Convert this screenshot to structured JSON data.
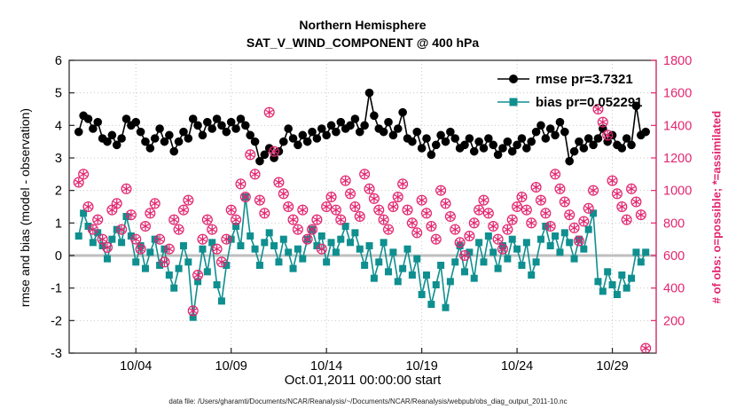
{
  "footer": {
    "data_file": "data file: /Users/gharamti/Documents/NCAR/Reanalysis/~/Documents/NCAR/Reanalysis/webpub/obs_diag_output_2011-10.nc"
  },
  "chart_data": {
    "type": "line",
    "title": "Northern Hemisphere",
    "subtitle": "SAT_V_WIND_COMPONENT @ 400 hPa",
    "xlabel": "Oct.01,2011 00:00:00 start",
    "ylabel_left": "rmse and bias (model - observation)",
    "ylabel_right": "# of obs: o=possible; *=assimilated",
    "ylim_left": [
      -3,
      6
    ],
    "ylim_right": [
      0,
      1800
    ],
    "xlim_days": [
      0.5,
      31.3
    ],
    "grid": true,
    "legend_position": "top-right-inside",
    "x_ticks": {
      "days": [
        4,
        9,
        14,
        19,
        24,
        29
      ],
      "labels": [
        "10/04",
        "10/09",
        "10/14",
        "10/19",
        "10/24",
        "10/29"
      ]
    },
    "y_ticks_left": [
      -3,
      -2,
      -1,
      0,
      1,
      2,
      3,
      4,
      5,
      6
    ],
    "y_ticks_right": [
      200,
      400,
      600,
      800,
      1000,
      1200,
      1400,
      1600,
      1800
    ],
    "legend": [
      {
        "label": "rmse pr=3.7321",
        "color": "#000000",
        "marker": "circle"
      },
      {
        "label": "bias pr=0.052291",
        "color": "#0f8f8f",
        "marker": "square"
      }
    ],
    "colors": {
      "rmse": "#000000",
      "bias": "#0f8f8f",
      "obs": "#e2256f",
      "zero_line": "#bfbfbf",
      "grid": "#9a9a9a"
    },
    "x_start_day": 1.0,
    "x_step_days": 0.25,
    "n_points": 120,
    "series": [
      {
        "name": "rmse",
        "axis": "left",
        "values": [
          3.8,
          4.3,
          4.2,
          3.9,
          4.1,
          3.6,
          3.5,
          3.7,
          3.4,
          3.6,
          4.2,
          4.0,
          4.1,
          3.8,
          3.5,
          3.3,
          3.6,
          3.9,
          3.5,
          3.7,
          3.2,
          3.5,
          3.8,
          3.6,
          4.2,
          4.0,
          3.7,
          4.1,
          3.9,
          4.2,
          4.0,
          3.8,
          4.1,
          3.9,
          4.2,
          4.0,
          3.7,
          3.5,
          2.9,
          3.1,
          3.3,
          3.0,
          3.2,
          3.5,
          3.9,
          3.6,
          3.4,
          3.7,
          3.5,
          3.8,
          3.6,
          3.9,
          3.7,
          4.0,
          3.8,
          4.1,
          3.9,
          4.0,
          4.2,
          3.8,
          4.0,
          5.0,
          4.3,
          3.9,
          3.8,
          4.1,
          3.7,
          3.9,
          4.4,
          3.6,
          3.5,
          3.8,
          3.3,
          3.6,
          3.1,
          3.4,
          3.7,
          3.5,
          3.8,
          3.6,
          3.3,
          3.4,
          3.6,
          3.2,
          3.5,
          3.3,
          3.6,
          3.4,
          3.1,
          3.3,
          3.5,
          3.2,
          3.4,
          3.6,
          3.3,
          3.5,
          3.8,
          4.0,
          3.6,
          3.9,
          3.7,
          4.1,
          3.8,
          2.9,
          3.2,
          3.5,
          3.3,
          3.6,
          3.4,
          3.6,
          3.9,
          3.5,
          3.7,
          3.4,
          3.3,
          3.6,
          3.4,
          4.6,
          3.7,
          3.8
        ]
      },
      {
        "name": "bias",
        "axis": "left",
        "values": [
          0.6,
          1.3,
          0.9,
          0.4,
          0.7,
          0.3,
          -0.1,
          0.5,
          0.8,
          0.4,
          1.2,
          0.6,
          -0.2,
          0.3,
          -0.4,
          0.1,
          0.5,
          -0.3,
          0.2,
          -0.6,
          -1.0,
          -0.4,
          0.3,
          -0.2,
          -1.9,
          -0.8,
          0.2,
          -0.5,
          0.4,
          -0.9,
          -1.4,
          -0.3,
          0.5,
          0.9,
          0.3,
          1.8,
          0.6,
          0.2,
          -0.3,
          0.4,
          0.7,
          0.3,
          -0.2,
          0.5,
          0.1,
          -0.4,
          0.2,
          -0.1,
          0.5,
          0.8,
          0.3,
          0.6,
          -0.2,
          0.4,
          0.1,
          0.5,
          0.9,
          0.4,
          0.7,
          0.2,
          -0.3,
          0.3,
          -0.7,
          -0.2,
          0.4,
          -0.5,
          0.1,
          -0.8,
          -0.4,
          0.2,
          -0.6,
          -0.1,
          -1.2,
          -0.6,
          -1.5,
          -0.9,
          -0.3,
          -1.6,
          -0.8,
          -0.2,
          0.3,
          -0.5,
          0.1,
          -0.7,
          0.4,
          -0.2,
          0.6,
          0.1,
          -0.4,
          0.3,
          -0.1,
          0.5,
          0.2,
          -0.3,
          0.4,
          -0.6,
          -0.2,
          0.5,
          0.9,
          0.3,
          0.6,
          0.1,
          0.7,
          0.4,
          -0.1,
          0.5,
          0.2,
          0.8,
          1.3,
          -0.8,
          -1.1,
          -0.5,
          -0.9,
          -1.2,
          -0.6,
          -1.0,
          -0.7,
          0.1,
          -0.2,
          0.1
        ]
      },
      {
        "name": "num_obs_possible_and_assimilated",
        "axis": "right",
        "values": [
          1050,
          1100,
          900,
          760,
          820,
          700,
          650,
          880,
          920,
          760,
          1010,
          850,
          700,
          640,
          780,
          860,
          920,
          700,
          560,
          640,
          820,
          760,
          880,
          940,
          260,
          480,
          700,
          820,
          760,
          640,
          560,
          700,
          880,
          820,
          1040,
          960,
          1220,
          1100,
          940,
          860,
          1480,
          1240,
          1050,
          980,
          900,
          820,
          760,
          880,
          700,
          760,
          820,
          640,
          900,
          960,
          880,
          820,
          1060,
          980,
          900,
          840,
          1100,
          1010,
          950,
          880,
          820,
          760,
          900,
          960,
          1040,
          880,
          800,
          740,
          940,
          860,
          780,
          700,
          1000,
          920,
          840,
          760,
          680,
          600,
          720,
          800,
          880,
          940,
          860,
          780,
          700,
          640,
          760,
          820,
          900,
          960,
          880,
          800,
          1020,
          940,
          860,
          780,
          1100,
          1010,
          930,
          850,
          770,
          690,
          810,
          890,
          1000,
          1500,
          1420,
          1340,
          1060,
          980,
          900,
          820,
          1010,
          930,
          850,
          30
        ]
      }
    ]
  }
}
